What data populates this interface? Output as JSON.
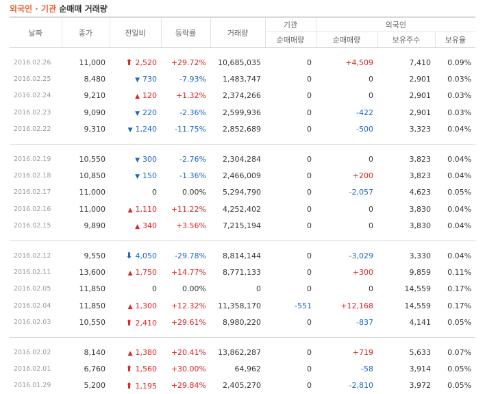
{
  "title": {
    "part1": "외국인 · 기관",
    "part2": "순매매 거래량"
  },
  "headers": {
    "date": "날짜",
    "close": "종가",
    "change": "전일비",
    "rate": "등락률",
    "volume": "거래량",
    "institution": "기관",
    "foreign": "외국인",
    "inst_net": "순매매량",
    "foreign_net": "순매매량",
    "holdings": "보유주수",
    "ratio": "보유율"
  },
  "groups": [
    [
      {
        "date": "2016.02.26",
        "close": "11,000",
        "arrow": "upper",
        "change": "2,520",
        "rate": "+29.72%",
        "volume": "10,685,035",
        "inst": "0",
        "foreign": "+4,509",
        "holdings": "7,410",
        "ratio": "0.09%"
      },
      {
        "date": "2016.02.25",
        "close": "8,480",
        "arrow": "down",
        "change": "730",
        "rate": "-7.93%",
        "volume": "1,483,747",
        "inst": "0",
        "foreign": "0",
        "holdings": "2,901",
        "ratio": "0.03%"
      },
      {
        "date": "2016.02.24",
        "close": "9,210",
        "arrow": "up",
        "change": "120",
        "rate": "+1.32%",
        "volume": "2,374,266",
        "inst": "0",
        "foreign": "0",
        "holdings": "2,901",
        "ratio": "0.03%"
      },
      {
        "date": "2016.02.23",
        "close": "9,090",
        "arrow": "down",
        "change": "220",
        "rate": "-2.36%",
        "volume": "2,599,936",
        "inst": "0",
        "foreign": "-422",
        "holdings": "2,901",
        "ratio": "0.03%"
      },
      {
        "date": "2016.02.22",
        "close": "9,310",
        "arrow": "down",
        "change": "1,240",
        "rate": "-11.75%",
        "volume": "2,852,689",
        "inst": "0",
        "foreign": "-500",
        "holdings": "3,323",
        "ratio": "0.04%"
      }
    ],
    [
      {
        "date": "2016.02.19",
        "close": "10,550",
        "arrow": "down",
        "change": "300",
        "rate": "-2.76%",
        "volume": "2,304,284",
        "inst": "0",
        "foreign": "0",
        "holdings": "3,823",
        "ratio": "0.04%"
      },
      {
        "date": "2016.02.18",
        "close": "10,850",
        "arrow": "down",
        "change": "150",
        "rate": "-1.36%",
        "volume": "2,466,009",
        "inst": "0",
        "foreign": "+200",
        "holdings": "3,823",
        "ratio": "0.04%"
      },
      {
        "date": "2016.02.17",
        "close": "11,000",
        "arrow": "none",
        "change": "0",
        "rate": "0.00%",
        "volume": "5,294,790",
        "inst": "0",
        "foreign": "-2,057",
        "holdings": "4,623",
        "ratio": "0.05%"
      },
      {
        "date": "2016.02.16",
        "close": "11,000",
        "arrow": "up",
        "change": "1,110",
        "rate": "+11.22%",
        "volume": "4,252,402",
        "inst": "0",
        "foreign": "0",
        "holdings": "3,830",
        "ratio": "0.04%"
      },
      {
        "date": "2016.02.15",
        "close": "9,890",
        "arrow": "up",
        "change": "340",
        "rate": "+3.56%",
        "volume": "7,215,194",
        "inst": "0",
        "foreign": "0",
        "holdings": "3,830",
        "ratio": "0.04%"
      }
    ],
    [
      {
        "date": "2016.02.12",
        "close": "9,550",
        "arrow": "lower",
        "change": "4,050",
        "rate": "-29.78%",
        "volume": "8,814,144",
        "inst": "0",
        "foreign": "-3,029",
        "holdings": "3,330",
        "ratio": "0.04%"
      },
      {
        "date": "2016.02.11",
        "close": "13,600",
        "arrow": "up",
        "change": "1,750",
        "rate": "+14.77%",
        "volume": "8,771,133",
        "inst": "0",
        "foreign": "+300",
        "holdings": "9,859",
        "ratio": "0.11%"
      },
      {
        "date": "2016.02.05",
        "close": "11,850",
        "arrow": "none",
        "change": "0",
        "rate": "0.00%",
        "volume": "0",
        "inst": "0",
        "foreign": "0",
        "holdings": "14,559",
        "ratio": "0.17%"
      },
      {
        "date": "2016.02.04",
        "close": "11,850",
        "arrow": "up",
        "change": "1,300",
        "rate": "+12.32%",
        "volume": "11,358,170",
        "inst": "-551",
        "foreign": "+12,168",
        "holdings": "14,559",
        "ratio": "0.17%"
      },
      {
        "date": "2016.02.03",
        "close": "10,550",
        "arrow": "upper",
        "change": "2,410",
        "rate": "+29.61%",
        "volume": "8,980,220",
        "inst": "0",
        "foreign": "-837",
        "holdings": "4,141",
        "ratio": "0.05%"
      }
    ],
    [
      {
        "date": "2016.02.02",
        "close": "8,140",
        "arrow": "up",
        "change": "1,380",
        "rate": "+20.41%",
        "volume": "13,862,287",
        "inst": "0",
        "foreign": "+719",
        "holdings": "5,633",
        "ratio": "0.07%"
      },
      {
        "date": "2016.02.01",
        "close": "6,760",
        "arrow": "upper",
        "change": "1,560",
        "rate": "+30.00%",
        "volume": "64,962",
        "inst": "0",
        "foreign": "-58",
        "holdings": "3,914",
        "ratio": "0.05%"
      },
      {
        "date": "2016.01.29",
        "close": "5,200",
        "arrow": "upper",
        "change": "1,195",
        "rate": "+29.84%",
        "volume": "2,405,270",
        "inst": "0",
        "foreign": "-2,810",
        "holdings": "3,972",
        "ratio": "0.05%"
      }
    ]
  ],
  "arrow_glyphs": {
    "upper": "⬆",
    "up": "▲",
    "down": "▼",
    "lower": "⬇",
    "none": ""
  },
  "colors": {
    "up": "#dd2222",
    "down": "#1a65c6",
    "title_accent": "#e8632c"
  }
}
